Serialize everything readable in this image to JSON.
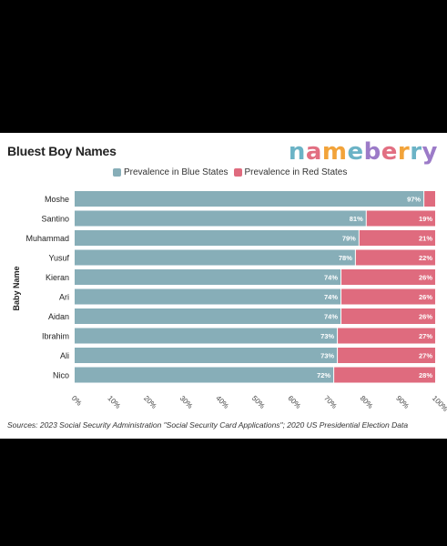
{
  "header": {
    "title": "Bluest Boy Names"
  },
  "logo": {
    "text": "nameberry",
    "letter_colors": [
      "#6bb3c6",
      "#e26f82",
      "#f2a33a",
      "#6bb3c6",
      "#9c7bc8",
      "#e26f82",
      "#f2a33a",
      "#6bb3c6",
      "#9c7bc8"
    ]
  },
  "footer": {
    "source": "Sources: 2023 Social Security Administration \"Social Security Card Applications\"; 2020 US Presidential Election Data"
  },
  "chart_data": {
    "type": "bar",
    "orientation": "horizontal",
    "stacked": true,
    "percent_labels_inside": true,
    "categories": [
      "Moshe",
      "Santino",
      "Muhammad",
      "Yusuf",
      "Kieran",
      "Ari",
      "Aidan",
      "Ibrahim",
      "Ali",
      "Nico"
    ],
    "series": [
      {
        "name": "Prevalence in Blue States",
        "color": "#87aeb8",
        "values": [
          97,
          81,
          79,
          78,
          74,
          74,
          74,
          73,
          73,
          72
        ],
        "labels": [
          "97%",
          "81%",
          "79%",
          "78%",
          "74%",
          "74%",
          "74%",
          "73%",
          "73%",
          "72%"
        ]
      },
      {
        "name": "Prevalence in Red States",
        "color": "#df6b7e",
        "values": [
          3,
          19,
          21,
          22,
          26,
          26,
          26,
          27,
          27,
          28
        ],
        "labels": [
          "",
          "19%",
          "21%",
          "22%",
          "26%",
          "26%",
          "26%",
          "27%",
          "27%",
          "28%"
        ]
      }
    ],
    "ylabel": "Baby Name",
    "xlabel": "",
    "xlim": [
      0,
      100
    ],
    "xticks": [
      "0%",
      "10%",
      "20%",
      "30%",
      "40%",
      "50%",
      "60%",
      "70%",
      "80%",
      "90%",
      "100%"
    ],
    "grid": false,
    "legend_position": "top"
  }
}
